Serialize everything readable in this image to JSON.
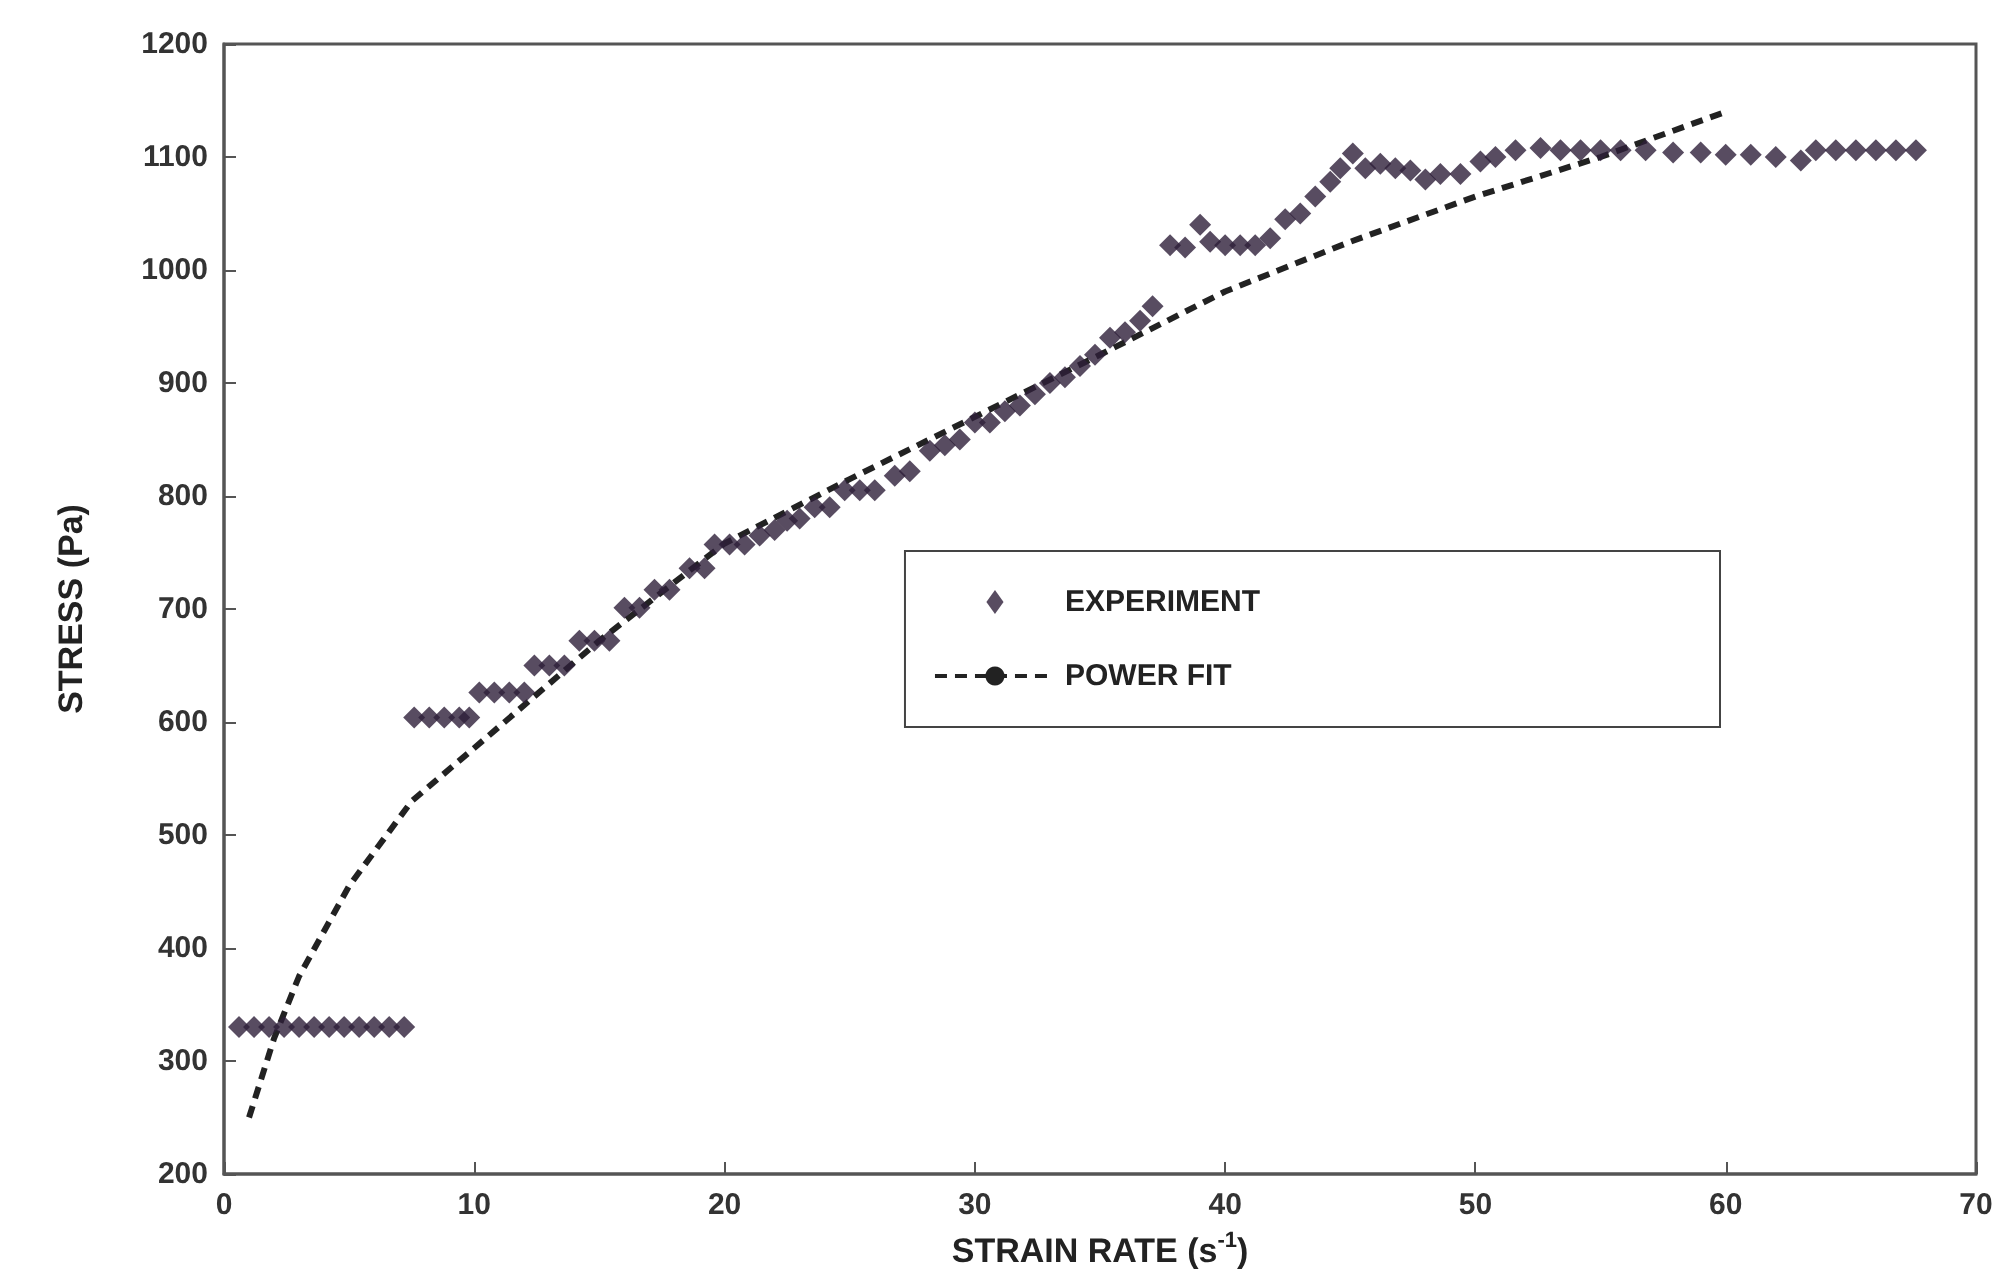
{
  "chart_data": {
    "type": "scatter",
    "xlabel": "STRAIN RATE (s$^{-1}$)",
    "ylabel": "STRESS (Pa)",
    "xlim": [
      0,
      70
    ],
    "xticks": [
      0,
      10,
      20,
      30,
      40,
      50,
      60,
      70
    ],
    "ylim": [
      200,
      1200
    ],
    "yticks": [
      200,
      300,
      400,
      500,
      600,
      700,
      800,
      900,
      1000,
      1100,
      1200
    ],
    "grid": false,
    "legend": "right",
    "marker": "diamond",
    "series": [
      {
        "name": "EXPERIMENT",
        "color": "#2e1f3a",
        "x": [
          0.6,
          1.2,
          1.8,
          2.4,
          3.0,
          3.6,
          4.2,
          4.8,
          5.4,
          6.0,
          6.6,
          7.2,
          7.6,
          8.2,
          8.8,
          9.4,
          9.8,
          10.2,
          10.8,
          11.4,
          12.0,
          12.4,
          13.0,
          13.6,
          14.2,
          14.8,
          15.4,
          16.0,
          16.6,
          17.2,
          17.8,
          18.6,
          19.2,
          19.6,
          20.2,
          20.8,
          21.4,
          22.0,
          22.5,
          23.0,
          23.6,
          24.2,
          24.8,
          25.4,
          26.0,
          26.8,
          27.4,
          28.2,
          28.8,
          29.4,
          30.0,
          30.6,
          31.2,
          31.8,
          32.4,
          33.0,
          33.6,
          34.2,
          34.8,
          35.4,
          36.0,
          36.6,
          37.1,
          37.8,
          38.4,
          39.0,
          39.4,
          40.0,
          40.6,
          41.2,
          41.8,
          42.4,
          43.0,
          43.6,
          44.2,
          44.6,
          45.1,
          45.6,
          46.2,
          46.8,
          47.4,
          48.0,
          48.6,
          49.4,
          50.2,
          50.8,
          51.6,
          52.6,
          53.4,
          54.2,
          55.0,
          55.8,
          56.8,
          57.9,
          59.0,
          60.0,
          61.0,
          62.0,
          63.0,
          63.6,
          64.4,
          65.2,
          66.0,
          66.8,
          67.6
        ],
        "values": [
          330,
          330,
          330,
          330,
          330,
          330,
          330,
          330,
          330,
          330,
          330,
          330,
          604,
          604,
          604,
          604,
          604,
          626,
          626,
          626,
          626,
          650,
          650,
          650,
          672,
          672,
          672,
          701,
          701,
          717,
          717,
          736,
          736,
          757,
          757,
          757,
          765,
          770,
          778,
          780,
          790,
          790,
          805,
          805,
          805,
          818,
          822,
          840,
          845,
          850,
          865,
          865,
          875,
          880,
          890,
          900,
          905,
          915,
          925,
          940,
          945,
          955,
          968,
          1022,
          1020,
          1040,
          1025,
          1022,
          1022,
          1022,
          1028,
          1045,
          1050,
          1065,
          1078,
          1090,
          1103,
          1090,
          1094,
          1090,
          1088,
          1080,
          1085,
          1085,
          1096,
          1100,
          1106,
          1108,
          1106,
          1106,
          1106,
          1106,
          1106,
          1104,
          1104,
          1102,
          1102,
          1100,
          1097,
          1106,
          1106,
          1106,
          1106,
          1106,
          1106
        ]
      },
      {
        "type": "line",
        "name": "POWER FIT",
        "color": "#222222",
        "marker": "none",
        "line_style": "dashed",
        "x": [
          1,
          2,
          3,
          5,
          7.5,
          10,
          15,
          20,
          25,
          30,
          35,
          40,
          45,
          50,
          55,
          60
        ],
        "values": [
          250,
          320,
          375,
          455,
          530,
          577,
          672,
          758,
          815,
          870,
          925,
          981,
          1025,
          1065,
          1100,
          1140
        ]
      }
    ]
  }
}
